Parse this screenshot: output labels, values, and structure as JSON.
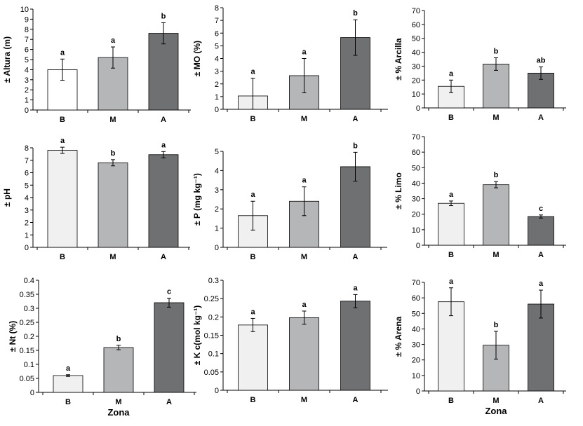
{
  "figure": {
    "colors": {
      "B": "#f0f0f0",
      "M": "#b4b6b8",
      "A": "#6e7072",
      "B_first": "#ffffff",
      "axis": "#000000",
      "error": "#000000"
    }
  },
  "chart_data": [
    {
      "type": "bar",
      "ylabel": "± Altura (m)",
      "xlabel": "",
      "categories": [
        "B",
        "M",
        "A"
      ],
      "values": [
        4.0,
        5.2,
        7.6
      ],
      "errors": [
        1.05,
        1.05,
        1.05
      ],
      "sig": [
        "a",
        "a",
        "b"
      ],
      "ylim": [
        0,
        10
      ],
      "yticks": [
        "0",
        "1",
        "2",
        "3",
        "4",
        "5",
        "6",
        "7",
        "8",
        "9",
        "10"
      ]
    },
    {
      "type": "bar",
      "ylabel": "± MO  (%)",
      "xlabel": "",
      "categories": [
        "B",
        "M",
        "A"
      ],
      "values": [
        1.05,
        2.65,
        5.65
      ],
      "errors": [
        1.4,
        1.35,
        1.4
      ],
      "sig": [
        "a",
        "a",
        "b"
      ],
      "ylim": [
        0,
        8
      ],
      "yticks": [
        "0",
        "1",
        "2",
        "3",
        "4",
        "5",
        "6",
        "7",
        "8"
      ]
    },
    {
      "type": "bar",
      "ylabel": "±   % Arcilla",
      "xlabel": "",
      "categories": [
        "B",
        "M",
        "A"
      ],
      "values": [
        15.5,
        31.5,
        25.0
      ],
      "errors": [
        4.5,
        4.5,
        4.5
      ],
      "sig": [
        "a",
        "b",
        "ab"
      ],
      "ylim": [
        0,
        70
      ],
      "yticks": [
        "0",
        "10",
        "20",
        "30",
        "40",
        "50",
        "60",
        "70"
      ]
    },
    {
      "type": "bar",
      "ylabel": "±   pH",
      "xlabel": "",
      "categories": [
        "B",
        "M",
        "A"
      ],
      "values": [
        7.8,
        6.8,
        7.45
      ],
      "errors": [
        0.25,
        0.25,
        0.25
      ],
      "sig": [
        "a",
        "b",
        "a"
      ],
      "ylim": [
        0,
        8
      ],
      "yticks": [
        "0",
        "1",
        "2",
        "3",
        "4",
        "5",
        "6",
        "7",
        "8"
      ]
    },
    {
      "type": "bar",
      "ylabel": "± P (mg  kg⁻¹)",
      "xlabel": "",
      "categories": [
        "B",
        "M",
        "A"
      ],
      "values": [
        1.65,
        2.4,
        4.2
      ],
      "errors": [
        0.75,
        0.75,
        0.75
      ],
      "sig": [
        "a",
        "a",
        "b"
      ],
      "ylim": [
        0,
        5
      ],
      "yticks": [
        "0",
        "1",
        "2",
        "3",
        "4",
        "5"
      ]
    },
    {
      "type": "bar",
      "ylabel": "±   % Limo",
      "xlabel": "",
      "categories": [
        "B",
        "M",
        "A"
      ],
      "values": [
        27.0,
        39.0,
        18.5
      ],
      "errors": [
        1.5,
        2.0,
        1.0
      ],
      "sig": [
        "a",
        "b",
        "c"
      ],
      "ylim": [
        0,
        70
      ],
      "yticks": [
        "0",
        "10",
        "20",
        "30",
        "40",
        "50",
        "60",
        "70"
      ]
    },
    {
      "type": "bar",
      "ylabel": "± Nt  (%)",
      "xlabel": "Zona",
      "categories": [
        "B",
        "M",
        "A"
      ],
      "values": [
        0.06,
        0.16,
        0.32
      ],
      "errors": [
        0.003,
        0.008,
        0.016
      ],
      "sig": [
        "a",
        "b",
        "c"
      ],
      "ylim": [
        0,
        0.4
      ],
      "yticks": [
        "0",
        "0.05",
        "0.1",
        "0.15",
        "0.2",
        "0.25",
        "0.3",
        "0.35",
        "0.4"
      ]
    },
    {
      "type": "bar",
      "ylabel": "± K c(mol  kg⁻¹)",
      "xlabel": "",
      "categories": [
        "B",
        "M",
        "A"
      ],
      "values": [
        0.178,
        0.198,
        0.243
      ],
      "errors": [
        0.018,
        0.018,
        0.018
      ],
      "sig": [
        "a",
        "a",
        "a"
      ],
      "ylim": [
        0,
        0.3
      ],
      "yticks": [
        "0",
        "0.05",
        "0.1",
        "0.15",
        "0.2",
        "0.25",
        "0.3"
      ]
    },
    {
      "type": "bar",
      "ylabel": "±   % Arena",
      "xlabel": "Zona",
      "categories": [
        "B",
        "M",
        "A"
      ],
      "values": [
        57.5,
        29.5,
        56.0
      ],
      "errors": [
        9.0,
        9.0,
        9.0
      ],
      "sig": [
        "a",
        "b",
        "a"
      ],
      "ylim": [
        0,
        70
      ],
      "yticks": [
        "0",
        "10",
        "20",
        "30",
        "40",
        "50",
        "60",
        "70"
      ]
    }
  ]
}
